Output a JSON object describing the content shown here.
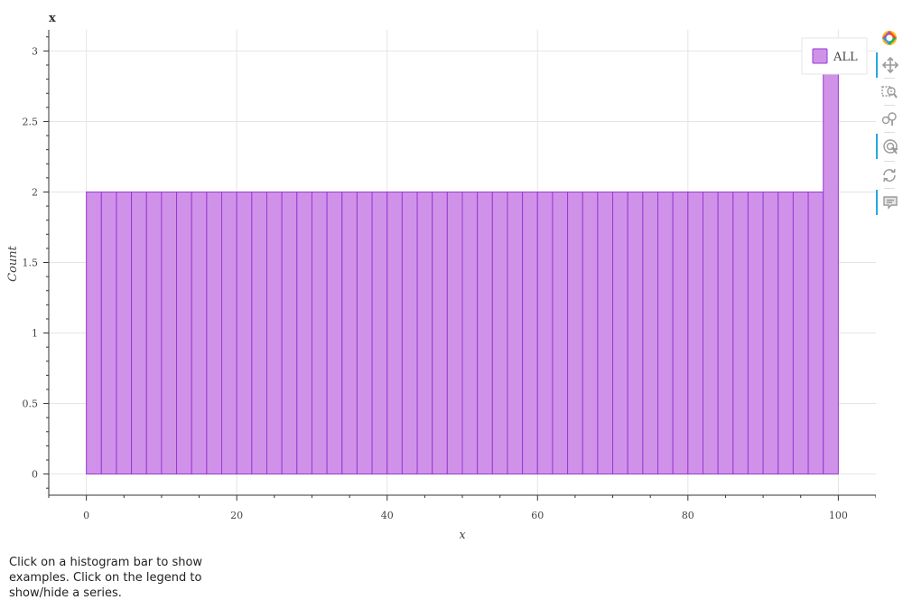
{
  "chart_data": {
    "type": "bar",
    "title": "x",
    "xlabel": "x",
    "ylabel": "Count",
    "xlim": [
      -5,
      105
    ],
    "ylim": [
      -0.15,
      3.15
    ],
    "x_ticks": [
      "0",
      "20",
      "40",
      "60",
      "80",
      "100"
    ],
    "y_ticks": [
      "0",
      "0.5",
      "1",
      "1.5",
      "2",
      "2.5",
      "3"
    ],
    "grid": true,
    "legend_position": "top-right",
    "bin_width": 2,
    "series": [
      {
        "name": "ALL",
        "color": "#cf92e8",
        "edge_color": "#9a3ad3",
        "bin_starts": [
          0,
          2,
          4,
          6,
          8,
          10,
          12,
          14,
          16,
          18,
          20,
          22,
          24,
          26,
          28,
          30,
          32,
          34,
          36,
          38,
          40,
          42,
          44,
          46,
          48,
          50,
          52,
          54,
          56,
          58,
          60,
          62,
          64,
          66,
          68,
          70,
          72,
          74,
          76,
          78,
          80,
          82,
          84,
          86,
          88,
          90,
          92,
          94,
          96,
          98
        ],
        "values": [
          2,
          2,
          2,
          2,
          2,
          2,
          2,
          2,
          2,
          2,
          2,
          2,
          2,
          2,
          2,
          2,
          2,
          2,
          2,
          2,
          2,
          2,
          2,
          2,
          2,
          2,
          2,
          2,
          2,
          2,
          2,
          2,
          2,
          2,
          2,
          2,
          2,
          2,
          2,
          2,
          2,
          2,
          2,
          2,
          2,
          2,
          2,
          2,
          2,
          3
        ]
      }
    ]
  },
  "toolbar": {
    "tools": [
      {
        "name": "bokeh-logo",
        "icon": "bokeh-logo-icon",
        "active": false
      },
      {
        "name": "pan",
        "icon": "pan-icon",
        "active": true
      },
      {
        "name": "box-zoom",
        "icon": "box-zoom-icon",
        "active": false
      },
      {
        "name": "wheel-zoom",
        "icon": "wheel-zoom-icon",
        "active": false
      },
      {
        "name": "tap",
        "icon": "tap-icon",
        "active": true
      },
      {
        "name": "reset",
        "icon": "reset-icon",
        "active": false
      },
      {
        "name": "hover",
        "icon": "hover-icon",
        "active": true
      }
    ]
  },
  "caption": "Click on a histogram bar to show examples. Click on the legend to show/hide a series."
}
